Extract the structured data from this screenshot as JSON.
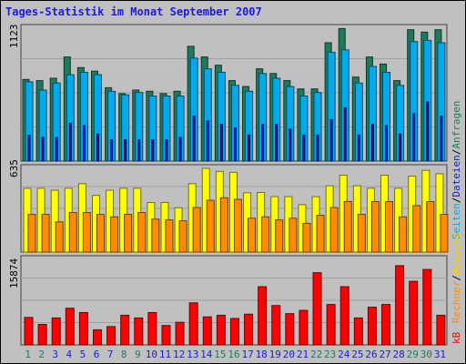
{
  "title": "Tages-Statistik im Monat September 2007",
  "colors": {
    "anfragen": "#1e7a5e",
    "dateien": "#00aaee",
    "seiten": "#1818cc",
    "besuche": "#ffff00",
    "rechner": "#ff8c00",
    "kb": "#ff0000",
    "weekend_label": "#1e7a5e",
    "weekday_label": "#1a1ae0",
    "panel_bg": "#c0c0c0",
    "grid": "#a0a0a0"
  },
  "legend": {
    "anfragen": "Anfragen",
    "dateien": "Dateien",
    "seiten": "Seiten",
    "besuche": "Besuche",
    "rechner": "Rechner",
    "kb": "kB",
    "separator": "/"
  },
  "chart_data": [
    {
      "type": "bar",
      "panel": "anfragen-dateien-seiten",
      "y_max_label": "1123",
      "ylim": [
        0,
        1123
      ],
      "categories": [
        "1",
        "2",
        "3",
        "4",
        "5",
        "6",
        "7",
        "8",
        "9",
        "10",
        "11",
        "12",
        "13",
        "14",
        "15",
        "16",
        "17",
        "18",
        "19",
        "20",
        "21",
        "22",
        "23",
        "24",
        "25",
        "26",
        "27",
        "28",
        "29",
        "30",
        "31"
      ],
      "series": [
        {
          "name": "Anfragen",
          "values": [
            690,
            680,
            700,
            880,
            790,
            760,
            620,
            570,
            600,
            590,
            570,
            590,
            970,
            880,
            810,
            680,
            630,
            780,
            740,
            680,
            610,
            610,
            1000,
            1120,
            710,
            880,
            820,
            680,
            1110,
            1090,
            1110
          ]
        },
        {
          "name": "Dateien",
          "values": [
            670,
            600,
            660,
            730,
            750,
            730,
            590,
            560,
            580,
            550,
            550,
            550,
            870,
            780,
            750,
            640,
            590,
            740,
            700,
            630,
            550,
            580,
            920,
            940,
            660,
            800,
            750,
            640,
            1010,
            1020,
            1000
          ]
        },
        {
          "name": "Seiten",
          "values": [
            220,
            200,
            200,
            320,
            300,
            230,
            180,
            180,
            180,
            180,
            180,
            200,
            380,
            340,
            310,
            280,
            220,
            310,
            310,
            270,
            220,
            220,
            350,
            450,
            220,
            310,
            300,
            230,
            400,
            500,
            380
          ]
        }
      ]
    },
    {
      "type": "bar",
      "panel": "besuche-rechner",
      "y_max_label": "635",
      "ylim": [
        0,
        635
      ],
      "categories": [
        "1",
        "2",
        "3",
        "4",
        "5",
        "6",
        "7",
        "8",
        "9",
        "10",
        "11",
        "12",
        "13",
        "14",
        "15",
        "16",
        "17",
        "18",
        "19",
        "20",
        "21",
        "22",
        "23",
        "24",
        "25",
        "26",
        "27",
        "28",
        "29",
        "30",
        "31"
      ],
      "series": [
        {
          "name": "Besuche",
          "values": [
            484,
            484,
            469,
            484,
            519,
            430,
            469,
            484,
            484,
            376,
            376,
            336,
            519,
            635,
            612,
            605,
            450,
            452,
            420,
            420,
            360,
            420,
            503,
            583,
            503,
            484,
            583,
            484,
            576,
            620,
            594
          ]
        },
        {
          "name": "Rechner",
          "values": [
            286,
            286,
            229,
            300,
            300,
            286,
            267,
            286,
            300,
            250,
            244,
            237,
            338,
            393,
            412,
            400,
            257,
            267,
            244,
            257,
            218,
            279,
            338,
            383,
            286,
            383,
            383,
            267,
            352,
            383,
            286
          ]
        }
      ]
    },
    {
      "type": "bar",
      "panel": "kb",
      "y_max_label": "15874",
      "ylim": [
        0,
        15874
      ],
      "categories": [
        "1",
        "2",
        "3",
        "4",
        "5",
        "6",
        "7",
        "8",
        "9",
        "10",
        "11",
        "12",
        "13",
        "14",
        "15",
        "16",
        "17",
        "18",
        "19",
        "20",
        "21",
        "22",
        "23",
        "24",
        "25",
        "26",
        "27",
        "28",
        "29",
        "30",
        "31"
      ],
      "series": [
        {
          "name": "kB",
          "values": [
            5100,
            3800,
            5000,
            6800,
            6000,
            2800,
            3400,
            5500,
            5000,
            6000,
            3600,
            4200,
            7800,
            5200,
            5500,
            4900,
            5700,
            10800,
            7300,
            5800,
            6400,
            13400,
            7500,
            10800,
            5000,
            7000,
            7500,
            14700,
            11800,
            14000,
            5500
          ]
        }
      ]
    }
  ],
  "weekend_days": [
    "1",
    "2",
    "8",
    "9",
    "15",
    "16",
    "22",
    "23",
    "29",
    "30"
  ]
}
